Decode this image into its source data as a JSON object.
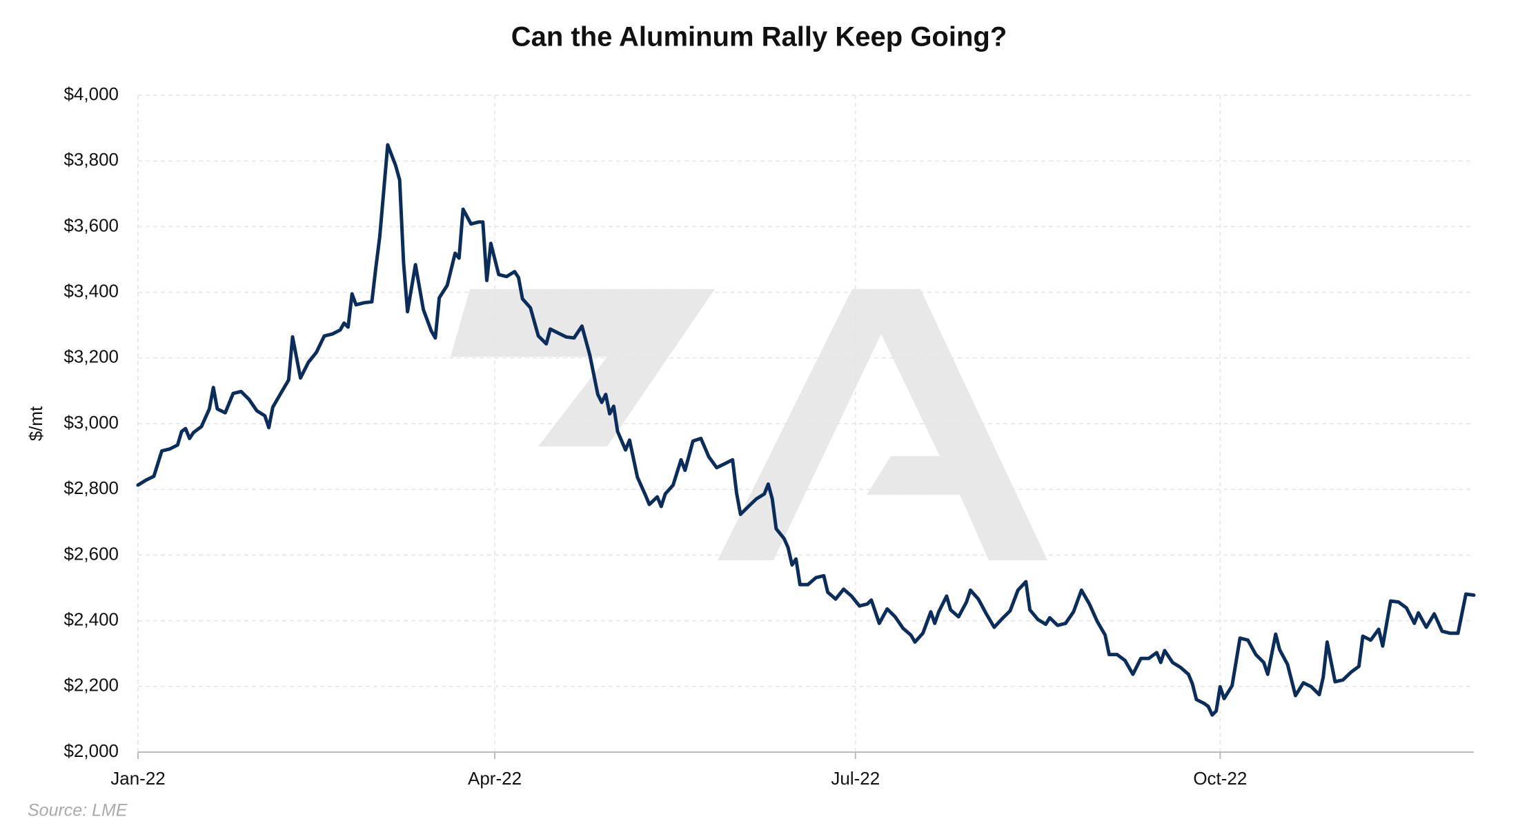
{
  "chart_data": {
    "type": "line",
    "title": "Can the Aluminum Rally Keep Going?",
    "y_label": "$/mt",
    "source": "Source: LME",
    "color": "#0b2d5b",
    "grid": true,
    "xlim": [
      0,
      337
    ],
    "xticks": [
      {
        "value": 0,
        "label": "Jan-22"
      },
      {
        "value": 90,
        "label": "Apr-22"
      },
      {
        "value": 181,
        "label": "Jul-22"
      },
      {
        "value": 273,
        "label": "Oct-22"
      }
    ],
    "ylim": [
      2000,
      4000
    ],
    "yticks": [
      {
        "value": 2000,
        "label": "$2,000"
      },
      {
        "value": 2200,
        "label": "$2,200"
      },
      {
        "value": 2400,
        "label": "$2,400"
      },
      {
        "value": 2600,
        "label": "$2,600"
      },
      {
        "value": 2800,
        "label": "$2,800"
      },
      {
        "value": 3000,
        "label": "$3,000"
      },
      {
        "value": 3200,
        "label": "$3,200"
      },
      {
        "value": 3400,
        "label": "$3,400"
      },
      {
        "value": 3600,
        "label": "$3,600"
      },
      {
        "value": 3800,
        "label": "$3,800"
      },
      {
        "value": 4000,
        "label": "$4,000"
      }
    ],
    "x": [
      0,
      2,
      4,
      6,
      8,
      10,
      11,
      12,
      13,
      14,
      16,
      18,
      19,
      20,
      22,
      24,
      26,
      28,
      30,
      32,
      33,
      34,
      36,
      38,
      39,
      41,
      43,
      45,
      47,
      49,
      51,
      52,
      53,
      54,
      55,
      57,
      59,
      60,
      61,
      63,
      65,
      66,
      67,
      68,
      70,
      72,
      74,
      75,
      76,
      78,
      80,
      81,
      82,
      84,
      86,
      87,
      88,
      89,
      91,
      93,
      95,
      96,
      97,
      99,
      101,
      102,
      103,
      104,
      106,
      108,
      110,
      112,
      114,
      116,
      117,
      118,
      119,
      120,
      121,
      123,
      124,
      126,
      128,
      129,
      131,
      132,
      133,
      135,
      137,
      138,
      140,
      142,
      144,
      146,
      148,
      150,
      151,
      152,
      154,
      156,
      158,
      159,
      160,
      161,
      163,
      164,
      165,
      166,
      167,
      169,
      171,
      173,
      174,
      176,
      178,
      180,
      182,
      184,
      185,
      187,
      189,
      191,
      193,
      195,
      196,
      198,
      200,
      201,
      202,
      204,
      205,
      207,
      209,
      210,
      212,
      214,
      216,
      218,
      220,
      222,
      224,
      225,
      227,
      229,
      230,
      232,
      234,
      236,
      238,
      240,
      242,
      244,
      245,
      247,
      249,
      251,
      253,
      255,
      257,
      258,
      259,
      261,
      263,
      265,
      266,
      267,
      269,
      270,
      271,
      272,
      273,
      274,
      276,
      278,
      280,
      282,
      284,
      285,
      287,
      288,
      290,
      292,
      294,
      296,
      298,
      299,
      300,
      302,
      304,
      306,
      308,
      309,
      311,
      313,
      314,
      316,
      318,
      320,
      322,
      323,
      325,
      327,
      329,
      331,
      333,
      335,
      337
    ],
    "values": [
      2813,
      2828,
      2840,
      2917,
      2923,
      2935,
      2976,
      2985,
      2955,
      2973,
      2991,
      3045,
      3110,
      3045,
      3033,
      3092,
      3098,
      3074,
      3039,
      3024,
      2988,
      3050,
      3092,
      3133,
      3264,
      3139,
      3187,
      3217,
      3267,
      3273,
      3285,
      3306,
      3294,
      3395,
      3362,
      3368,
      3371,
      3475,
      3570,
      3849,
      3786,
      3742,
      3490,
      3341,
      3484,
      3347,
      3282,
      3261,
      3383,
      3421,
      3519,
      3504,
      3653,
      3608,
      3614,
      3614,
      3436,
      3549,
      3454,
      3448,
      3463,
      3445,
      3380,
      3353,
      3267,
      3255,
      3243,
      3288,
      3276,
      3264,
      3261,
      3297,
      3208,
      3089,
      3065,
      3089,
      3030,
      3053,
      2976,
      2920,
      2950,
      2837,
      2783,
      2754,
      2777,
      2748,
      2786,
      2813,
      2890,
      2858,
      2947,
      2955,
      2899,
      2866,
      2878,
      2890,
      2789,
      2724,
      2748,
      2771,
      2786,
      2816,
      2771,
      2680,
      2650,
      2623,
      2570,
      2588,
      2510,
      2510,
      2531,
      2537,
      2487,
      2466,
      2496,
      2475,
      2445,
      2451,
      2463,
      2392,
      2436,
      2412,
      2377,
      2356,
      2335,
      2362,
      2427,
      2392,
      2427,
      2475,
      2433,
      2412,
      2457,
      2493,
      2466,
      2421,
      2380,
      2406,
      2430,
      2493,
      2519,
      2433,
      2404,
      2389,
      2409,
      2386,
      2392,
      2427,
      2493,
      2451,
      2398,
      2356,
      2297,
      2297,
      2279,
      2237,
      2285,
      2285,
      2303,
      2273,
      2309,
      2273,
      2258,
      2237,
      2208,
      2160,
      2148,
      2139,
      2113,
      2125,
      2199,
      2163,
      2202,
      2347,
      2341,
      2297,
      2273,
      2237,
      2359,
      2312,
      2267,
      2172,
      2211,
      2199,
      2175,
      2228,
      2335,
      2214,
      2220,
      2243,
      2261,
      2353,
      2341,
      2374,
      2323,
      2460,
      2457,
      2439,
      2392,
      2424,
      2380,
      2421,
      2368,
      2362,
      2362,
      2481,
      2478
    ]
  }
}
